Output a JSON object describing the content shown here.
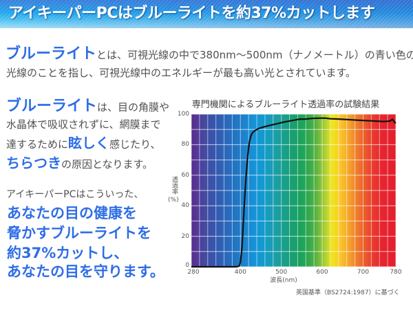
{
  "banner": {
    "title": "アイキーパーPCはブルーライトを約37%カットします"
  },
  "intro": {
    "highlight": "ブルーライト",
    "line1_rest": "とは、可視光線の中で380nm～500nm（ナノメートル）の青い色の",
    "line2": "光線のことを指し、可視光線中のエネルギーが最も高い光とされています。"
  },
  "effects": {
    "line1": [
      "ブルーライト",
      "は、目の角膜や"
    ],
    "line2": [
      "水晶体で吸収されずに、網膜まで"
    ],
    "line3": [
      "達するために",
      "眩しく",
      "感じたり、"
    ],
    "line4": [
      "ちらつき",
      "の原因となります。"
    ]
  },
  "message": {
    "lead": "アイキーパーPCはこういった、",
    "lines": [
      "あなたの目の健康を",
      "脅かすブルーライトを",
      "約37%カットし、",
      "あなたの目を守ります。"
    ]
  },
  "colors": {
    "accent_blue": "#2e6de6",
    "body_text": "#505050",
    "curve": "#111111"
  },
  "chart_data": {
    "type": "line",
    "title": "専門機関によるブルーライト透過率の試験結果",
    "xlabel": "波長(nm)",
    "ylabel": {
      "main": "透過率",
      "unit": "(%)"
    },
    "footnote": "英国基準（BS2724:1987）に基づく",
    "xlim": [
      280,
      780
    ],
    "ylim": [
      0,
      100
    ],
    "xticks": [
      280,
      400,
      500,
      600,
      700,
      780
    ],
    "yticks": [
      0,
      20,
      40,
      60,
      80,
      100
    ],
    "grid": {
      "on": true,
      "x_step": 20,
      "y_step": 10
    },
    "legend": "none",
    "series": [
      {
        "name": "透過率",
        "x": [
          280,
          300,
          350,
          390,
          397,
          400,
          404,
          407,
          410,
          414,
          418,
          422,
          426,
          430,
          437,
          444,
          455,
          470,
          494,
          510,
          530,
          544,
          560,
          575,
          594,
          608,
          620,
          640,
          665,
          690,
          721,
          740,
          750,
          760,
          766,
          772,
          776,
          780
        ],
        "y": [
          0,
          0,
          0,
          0,
          0.5,
          3,
          13,
          28,
          43,
          60,
          73,
          82,
          86,
          88,
          89.5,
          90.5,
          91.5,
          92.5,
          94,
          95,
          96,
          96.7,
          96.8,
          97.2,
          97.4,
          97.4,
          97,
          96.8,
          96.4,
          96,
          95.6,
          95.3,
          95.2,
          95.3,
          95.5,
          96.7,
          95,
          94
        ]
      }
    ],
    "spectrum_background": [
      {
        "pos": 0,
        "color": "#5b2c8f"
      },
      {
        "pos": 4,
        "color": "#4f3f9a"
      },
      {
        "pos": 8,
        "color": "#3f4fa5"
      },
      {
        "pos": 12,
        "color": "#3458b0"
      },
      {
        "pos": 16,
        "color": "#2c65b8"
      },
      {
        "pos": 20,
        "color": "#2570c0"
      },
      {
        "pos": 24,
        "color": "#1f7cc8"
      },
      {
        "pos": 28,
        "color": "#1a8ad2"
      },
      {
        "pos": 32,
        "color": "#1496d8"
      },
      {
        "pos": 36,
        "color": "#129bc8"
      },
      {
        "pos": 40,
        "color": "#1a9eb0"
      },
      {
        "pos": 44,
        "color": "#1b9f94"
      },
      {
        "pos": 48,
        "color": "#18a07a"
      },
      {
        "pos": 53,
        "color": "#1aa160"
      },
      {
        "pos": 57,
        "color": "#2ea84e"
      },
      {
        "pos": 61,
        "color": "#5ab243"
      },
      {
        "pos": 65,
        "color": "#a5cc36"
      },
      {
        "pos": 69,
        "color": "#f2e51d"
      },
      {
        "pos": 73,
        "color": "#f8c52a"
      },
      {
        "pos": 77,
        "color": "#f4a42c"
      },
      {
        "pos": 81,
        "color": "#ef7d2c"
      },
      {
        "pos": 85,
        "color": "#eb5a2e"
      },
      {
        "pos": 89,
        "color": "#e83a2f"
      },
      {
        "pos": 93,
        "color": "#e6262f"
      },
      {
        "pos": 100,
        "color": "#e31f2e"
      }
    ]
  }
}
